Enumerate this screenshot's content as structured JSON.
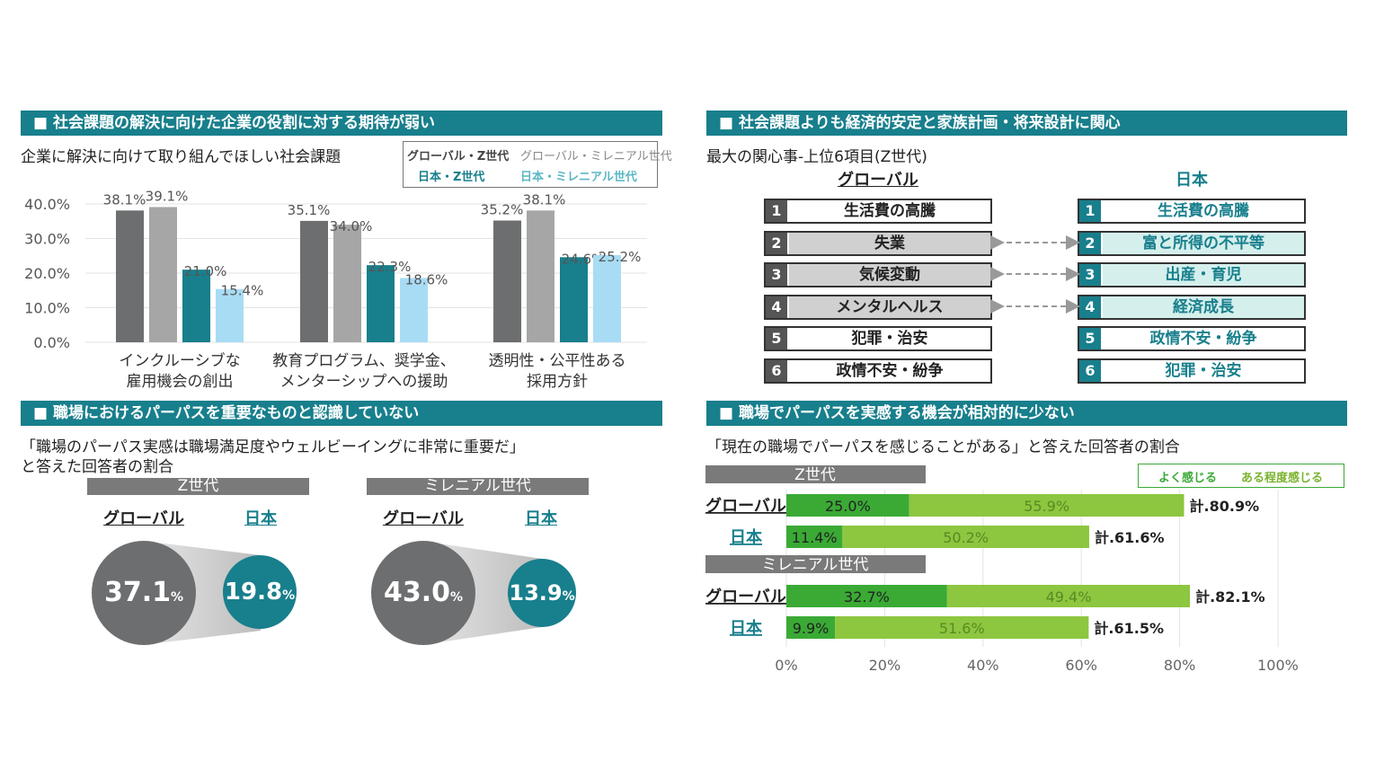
{
  "panel1": {
    "banner": "■ 社会課題の解決に向けた企業の役割に対する期待が弱い",
    "subtitle": "企業に解決に向けて取り組んでほしい社会課題",
    "legend": [
      "グローバル・Z世代",
      "グローバル・ミレニアル世代",
      "日本・Z世代",
      "日本・ミレニアル世代"
    ]
  },
  "panel2": {
    "banner": "■ 社会課題よりも経済的安定と家族計画・将来設計に関心",
    "subtitle": "最大の関心事-上位6項目(Z世代)",
    "global_head": "グローバル",
    "japan_head": "日本",
    "global_items": [
      "生活費の高騰",
      "失業",
      "気候変動",
      "メンタルヘルス",
      "犯罪・治安",
      "政情不安・紛争"
    ],
    "japan_items": [
      "生活費の高騰",
      "富と所得の不平等",
      "出産・育児",
      "経済成長",
      "政情不安・紛争",
      "犯罪・治安"
    ],
    "numbers": [
      "1",
      "2",
      "3",
      "4",
      "5",
      "6"
    ]
  },
  "panel3": {
    "banner": "■ 職場におけるパーパスを重要なものと認識していない",
    "subtitle1": "「職場のパーパス実感は職場満足度やウェルビーイングに非常に重要だ」",
    "subtitle2": "と答えた回答者の割合",
    "groups": [
      {
        "gen": "Z世代",
        "global_label": "グローバル",
        "japan_label": "日本",
        "global_value": "37.1",
        "japan_value": "19.8",
        "unit": "%"
      },
      {
        "gen": "ミレニアル世代",
        "global_label": "グローバル",
        "japan_label": "日本",
        "global_value": "43.0",
        "japan_value": "13.9",
        "unit": "%"
      }
    ]
  },
  "panel4": {
    "banner": "■ 職場でパーパスを実感する機会が相対的に少ない",
    "subtitle": "「現在の職場でパーパスを感じることがある」と答えた回答者の割合",
    "legend": [
      "よく感じる",
      "ある程度感じる"
    ],
    "gen_labels": [
      "Z世代",
      "ミレニアル世代"
    ]
  },
  "chart_data": [
    {
      "type": "bar",
      "categories": [
        "インクルーシブな\n雇用機会の創出",
        "教育プログラム、奨学金、\nメンターシップへの援助",
        "透明性・公平性ある\n採用方針"
      ],
      "series": [
        {
          "name": "グローバル・Z世代",
          "values": [
            38.1,
            35.1,
            35.2
          ],
          "labels": [
            "38.1%",
            "35.1%",
            "35.2%"
          ],
          "color": "#6d6e70"
        },
        {
          "name": "グローバル・ミレニアル世代",
          "values": [
            39.1,
            34.0,
            38.1
          ],
          "labels": [
            "39.1%",
            "34.0%",
            "38.1%"
          ],
          "color": "#a6a6a6"
        },
        {
          "name": "日本・Z世代",
          "values": [
            21.0,
            22.3,
            24.6
          ],
          "labels": [
            "21.0%",
            "22.3%",
            "24.6%"
          ],
          "color": "#187f8c"
        },
        {
          "name": "日本・ミレニアル世代",
          "values": [
            15.4,
            18.6,
            25.2
          ],
          "labels": [
            "15.4%",
            "18.6%",
            "25.2%"
          ],
          "color": "#a8dcf5"
        }
      ],
      "yticks": [
        "0.0%",
        "10.0%",
        "20.0%",
        "30.0%",
        "40.0%"
      ],
      "ylim": [
        0,
        40
      ]
    },
    {
      "type": "bar",
      "orientation": "horizontal-stacked",
      "rows": [
        {
          "group": "Z世代",
          "label": "グローバル",
          "often": 25.0,
          "somewhat": 55.9,
          "often_label": "25.0%",
          "somewhat_label": "55.9%",
          "total_label": "計.80.9%"
        },
        {
          "group": "Z世代",
          "label": "日本",
          "often": 11.4,
          "somewhat": 50.2,
          "often_label": "11.4%",
          "somewhat_label": "50.2%",
          "total_label": "計.61.6%"
        },
        {
          "group": "ミレニアル世代",
          "label": "グローバル",
          "often": 32.7,
          "somewhat": 49.4,
          "often_label": "32.7%",
          "somewhat_label": "49.4%",
          "total_label": "計.82.1%"
        },
        {
          "group": "ミレニアル世代",
          "label": "日本",
          "often": 9.9,
          "somewhat": 51.6,
          "often_label": "9.9%",
          "somewhat_label": "51.6%",
          "total_label": "計.61.5%"
        }
      ],
      "series_names": [
        "よく感じる",
        "ある程度感じる"
      ],
      "colors": {
        "often": "#3aaa35",
        "somewhat": "#8dc63f"
      },
      "xticks": [
        "0%",
        "20%",
        "40%",
        "60%",
        "80%",
        "100%"
      ],
      "xlim": [
        0,
        100
      ]
    }
  ]
}
